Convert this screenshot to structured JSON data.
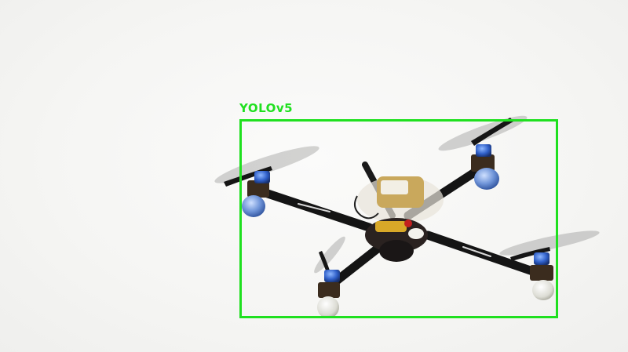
{
  "detection": {
    "label": "YOLOv5",
    "box_color": "#1fe01f"
  },
  "scene": {
    "subject": "quadcopter-drone"
  }
}
